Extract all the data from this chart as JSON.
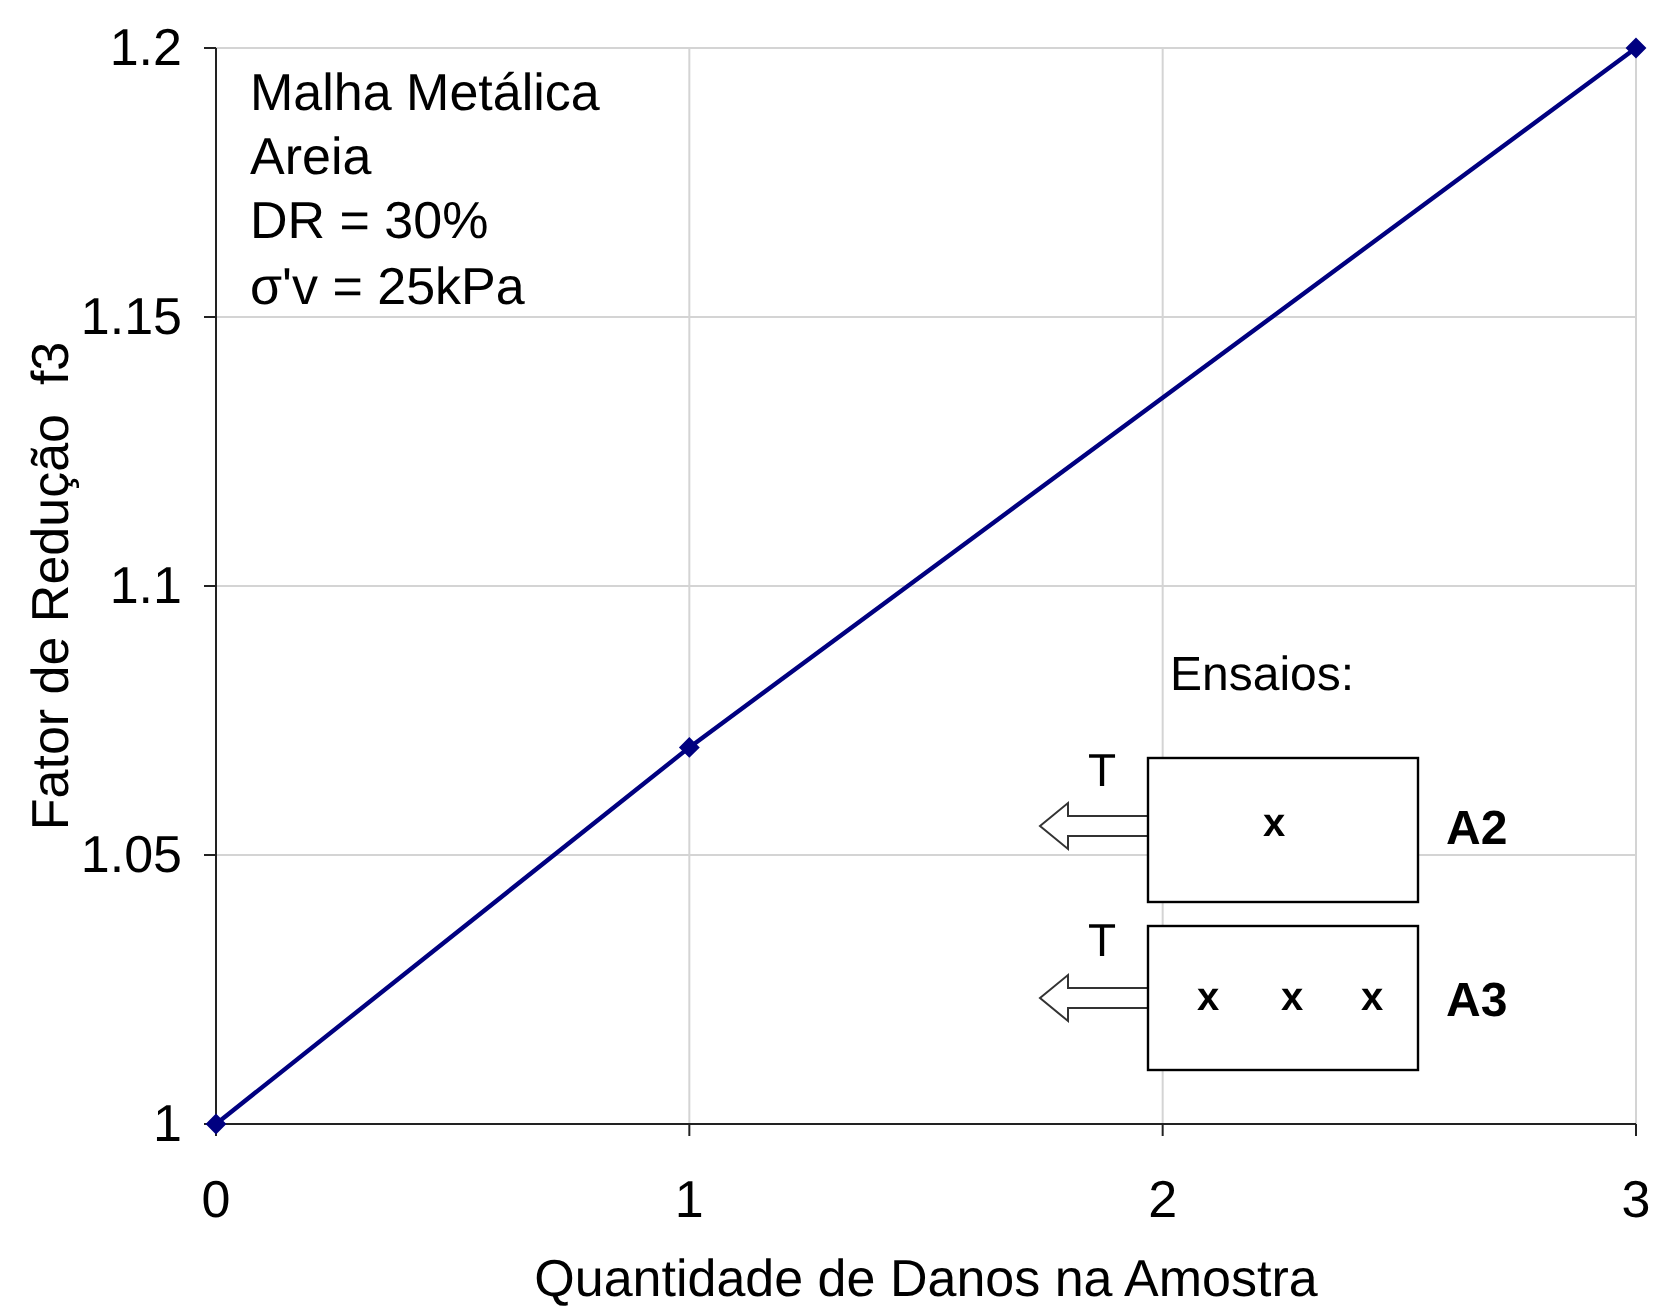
{
  "chart_data": {
    "type": "line",
    "xlabel": "Quantidade de Danos na Amostra",
    "ylabel": "Fator de Redução  f3",
    "x": [
      0,
      1,
      3
    ],
    "series": [
      {
        "color": "#000080",
        "values": [
          1,
          1.07,
          1.2
        ]
      }
    ],
    "xlim": [
      0,
      3
    ],
    "xticks": [
      0,
      1,
      2,
      3
    ],
    "ylim": [
      1,
      1.2
    ],
    "yticks": [
      1,
      1.05,
      1.1,
      1.15,
      1.2
    ],
    "grid": true,
    "marker": "diamond",
    "line_style": "solid",
    "annotations": [
      "Malha Metálica",
      "Areia",
      "DR = 30%",
      "σ'v = 25kPa",
      "Ensaios:",
      "T",
      "x",
      "A2",
      "T",
      "x",
      "x",
      "x",
      "A3"
    ]
  }
}
